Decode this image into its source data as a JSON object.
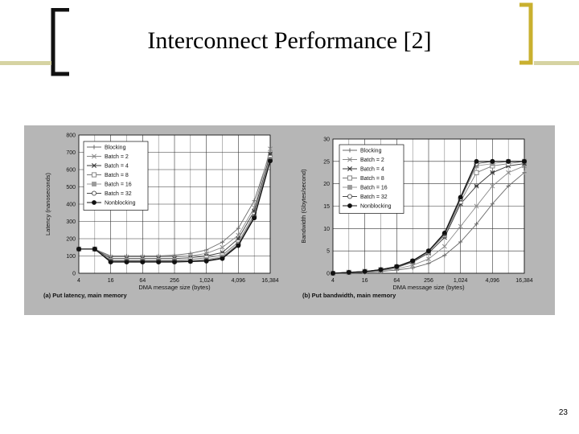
{
  "slide": {
    "title": "Interconnect Performance [2]",
    "page_number": "23"
  },
  "colors": {
    "figure_background": "#b6b6b6",
    "plot_background": "#ffffff",
    "bracket_dark": "#111111",
    "bracket_gold": "#c9b02f",
    "rule": "#d6d3a2"
  },
  "chart_data": [
    {
      "type": "line",
      "caption": "(a) Put latency, main memory",
      "xlabel": "DMA message size (bytes)",
      "ylabel": "Latency (nanoseconds)",
      "x_scale": "log2",
      "x_ticks": [
        "4",
        "16",
        "64",
        "256",
        "1,024",
        "4,096",
        "16,384"
      ],
      "x_tick_values": [
        4,
        16,
        64,
        256,
        1024,
        4096,
        16384
      ],
      "y_ticks": [
        0,
        100,
        200,
        300,
        400,
        500,
        600,
        700,
        800
      ],
      "ylim": [
        0,
        800
      ],
      "grid": true,
      "legend_position": "top-left",
      "x": [
        4,
        8,
        16,
        32,
        64,
        128,
        256,
        512,
        1024,
        2048,
        4096,
        8192,
        16384
      ],
      "series": [
        {
          "name": "Blocking",
          "marker": "plus",
          "values": [
            140,
            140,
            100,
            100,
            100,
            100,
            105,
            115,
            135,
            180,
            260,
            420,
            700
          ]
        },
        {
          "name": "Batch = 2",
          "marker": "x",
          "values": [
            140,
            140,
            95,
            95,
            95,
            95,
            95,
            100,
            115,
            150,
            220,
            380,
            720
          ]
        },
        {
          "name": "Batch = 4",
          "marker": "star",
          "values": [
            140,
            140,
            85,
            85,
            85,
            85,
            85,
            90,
            100,
            120,
            200,
            360,
            690
          ]
        },
        {
          "name": "Batch = 8",
          "marker": "square-open",
          "values": [
            140,
            140,
            75,
            75,
            75,
            75,
            75,
            80,
            90,
            105,
            180,
            340,
            670
          ]
        },
        {
          "name": "Batch = 16",
          "marker": "square-filled",
          "values": [
            140,
            140,
            70,
            70,
            70,
            70,
            70,
            72,
            80,
            95,
            170,
            330,
            660
          ]
        },
        {
          "name": "Batch = 32",
          "marker": "circle-open",
          "values": [
            140,
            140,
            70,
            70,
            70,
            70,
            70,
            70,
            75,
            90,
            165,
            325,
            655
          ]
        },
        {
          "name": "Nonblocking",
          "marker": "circle-filled",
          "values": [
            140,
            140,
            65,
            65,
            65,
            65,
            65,
            68,
            70,
            85,
            160,
            320,
            650
          ]
        }
      ]
    },
    {
      "type": "line",
      "caption": "(b) Put bandwidth, main memory",
      "xlabel": "DMA message size (bytes)",
      "ylabel": "Bandwidth (Gbytes/second)",
      "x_scale": "log2",
      "x_ticks": [
        "4",
        "16",
        "64",
        "256",
        "1,024",
        "4,096",
        "16,384"
      ],
      "x_tick_values": [
        4,
        16,
        64,
        256,
        1024,
        4096,
        16384
      ],
      "y_ticks": [
        0,
        5,
        10,
        15,
        20,
        25,
        30
      ],
      "ylim": [
        0,
        30
      ],
      "grid": true,
      "legend_position": "top-left",
      "x": [
        4,
        8,
        16,
        32,
        64,
        128,
        256,
        512,
        1024,
        2048,
        4096,
        8192,
        16384
      ],
      "series": [
        {
          "name": "Blocking",
          "marker": "plus",
          "values": [
            0,
            0.1,
            0.2,
            0.4,
            0.7,
            1.2,
            2.2,
            4,
            7,
            11,
            15.5,
            19.5,
            22.5
          ]
        },
        {
          "name": "Batch = 2",
          "marker": "x",
          "values": [
            0,
            0.1,
            0.3,
            0.6,
            1,
            1.8,
            3.2,
            6,
            10.5,
            15,
            19.5,
            22.5,
            24
          ]
        },
        {
          "name": "Batch = 4",
          "marker": "star",
          "values": [
            0,
            0.2,
            0.4,
            0.7,
            1.3,
            2.5,
            4.5,
            8,
            15.5,
            19.5,
            22.5,
            24,
            24.5
          ]
        },
        {
          "name": "Batch = 8",
          "marker": "square-open",
          "values": [
            0,
            0.2,
            0.4,
            0.8,
            1.4,
            2.6,
            4.8,
            8.5,
            16,
            22.5,
            24,
            24.5,
            25
          ]
        },
        {
          "name": "Batch = 16",
          "marker": "square-filled",
          "values": [
            0,
            0.2,
            0.4,
            0.8,
            1.5,
            2.7,
            4.9,
            8.7,
            16.5,
            24,
            24.5,
            25,
            25
          ]
        },
        {
          "name": "Batch = 32",
          "marker": "circle-open",
          "values": [
            0,
            0.2,
            0.4,
            0.8,
            1.5,
            2.7,
            5,
            8.8,
            16.7,
            24.5,
            25,
            25,
            25
          ]
        },
        {
          "name": "Nonblocking",
          "marker": "circle-filled",
          "values": [
            0,
            0.2,
            0.4,
            0.8,
            1.5,
            2.8,
            5,
            9,
            17,
            25,
            25,
            25,
            25
          ]
        }
      ]
    }
  ]
}
